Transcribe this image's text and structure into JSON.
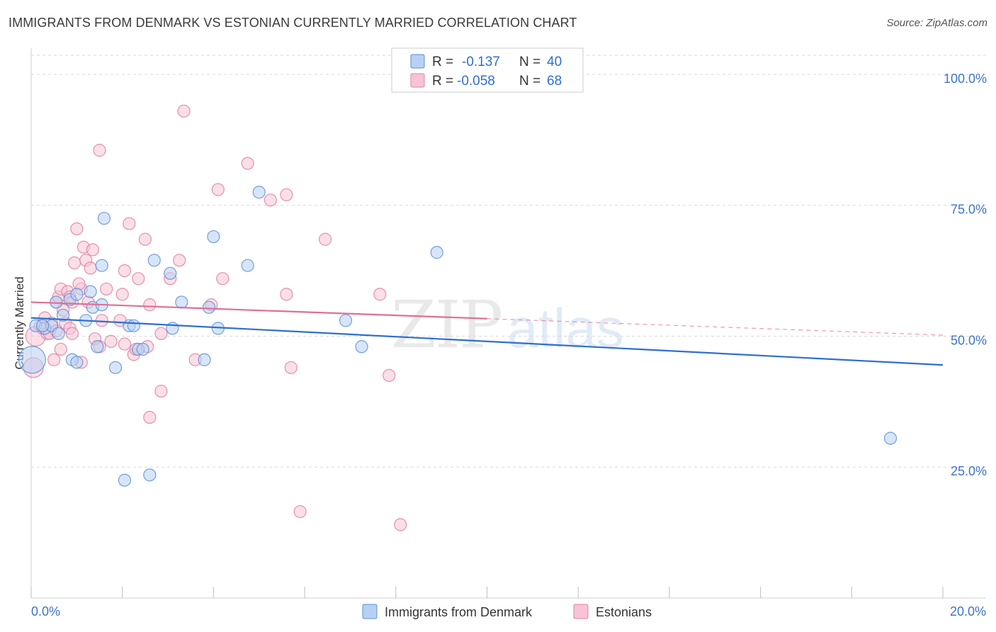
{
  "header": {
    "title": "IMMIGRANTS FROM DENMARK VS ESTONIAN CURRENTLY MARRIED CORRELATION CHART",
    "source": "Source: ZipAtlas.com"
  },
  "colors": {
    "blue_fill": "#b8d0f3",
    "blue_stroke": "#5b8fd6",
    "blue_line": "#2f6fcf",
    "pink_fill": "#f6c4d6",
    "pink_stroke": "#e07fa1",
    "pink_line": "#e06f96",
    "axis_label": "#3e74c9",
    "grid": "#d9d9d9"
  },
  "chart_data": {
    "type": "scatter",
    "title": "IMMIGRANTS FROM DENMARK VS ESTONIAN CURRENTLY MARRIED CORRELATION CHART",
    "xlabel": "",
    "ylabel": "Currently Married",
    "xlim": [
      0,
      20
    ],
    "ylim": [
      0,
      105
    ],
    "x_tick_labels": [
      "0.0%",
      "20.0%"
    ],
    "y_ticks": [
      25,
      50,
      75,
      100
    ],
    "y_tick_labels": [
      "25.0%",
      "50.0%",
      "75.0%",
      "100.0%"
    ],
    "watermark": {
      "zip": "ZIP",
      "atlas": "atlas"
    },
    "stats_legend": [
      {
        "r_label": "R =",
        "r": "-0.137",
        "n_label": "N =",
        "n": "40"
      },
      {
        "r_label": "R =",
        "r": "-0.058",
        "n_label": "N =",
        "n": "68"
      }
    ],
    "series": [
      {
        "name": "Immigrants from Denmark",
        "color": "#5b8fd6",
        "r": -0.137,
        "n": 40,
        "trend": {
          "x0": 0,
          "y0": 53.5,
          "x1": 20,
          "y1": 44.5,
          "solid_to": 20
        },
        "points": [
          {
            "x": 0.02,
            "y": 45.5,
            "s": "xl"
          },
          {
            "x": 0.1,
            "y": 52,
            "s": "m"
          },
          {
            "x": 0.3,
            "y": 51.5,
            "s": "m"
          },
          {
            "x": 0.45,
            "y": 52,
            "s": "m"
          },
          {
            "x": 0.6,
            "y": 50.5,
            "s": "m"
          },
          {
            "x": 0.55,
            "y": 56.5,
            "s": "m"
          },
          {
            "x": 0.7,
            "y": 54,
            "s": "m"
          },
          {
            "x": 0.85,
            "y": 57,
            "s": "m"
          },
          {
            "x": 1.0,
            "y": 58,
            "s": "m"
          },
          {
            "x": 1.2,
            "y": 53,
            "s": "m"
          },
          {
            "x": 1.35,
            "y": 55.5,
            "s": "m"
          },
          {
            "x": 1.55,
            "y": 56,
            "s": "m"
          },
          {
            "x": 1.3,
            "y": 58.5,
            "s": "m"
          },
          {
            "x": 1.55,
            "y": 63.5,
            "s": "m"
          },
          {
            "x": 1.6,
            "y": 72.5,
            "s": "m"
          },
          {
            "x": 0.9,
            "y": 45.5,
            "s": "m"
          },
          {
            "x": 1.0,
            "y": 45,
            "s": "m"
          },
          {
            "x": 1.45,
            "y": 48,
            "s": "m"
          },
          {
            "x": 1.85,
            "y": 44,
            "s": "m"
          },
          {
            "x": 2.15,
            "y": 52,
            "s": "m"
          },
          {
            "x": 2.25,
            "y": 52,
            "s": "m"
          },
          {
            "x": 2.35,
            "y": 47.5,
            "s": "m"
          },
          {
            "x": 2.45,
            "y": 47.5,
            "s": "m"
          },
          {
            "x": 2.7,
            "y": 64.5,
            "s": "m"
          },
          {
            "x": 3.05,
            "y": 62,
            "s": "m"
          },
          {
            "x": 3.1,
            "y": 51.5,
            "s": "m"
          },
          {
            "x": 3.3,
            "y": 56.5,
            "s": "m"
          },
          {
            "x": 3.8,
            "y": 45.5,
            "s": "m"
          },
          {
            "x": 3.9,
            "y": 55.5,
            "s": "m"
          },
          {
            "x": 4.0,
            "y": 69,
            "s": "m"
          },
          {
            "x": 4.1,
            "y": 51.5,
            "s": "m"
          },
          {
            "x": 4.75,
            "y": 63.5,
            "s": "m"
          },
          {
            "x": 5.0,
            "y": 77.5,
            "s": "m"
          },
          {
            "x": 6.9,
            "y": 53,
            "s": "m"
          },
          {
            "x": 7.25,
            "y": 48,
            "s": "m"
          },
          {
            "x": 8.9,
            "y": 66,
            "s": "m"
          },
          {
            "x": 2.05,
            "y": 22.5,
            "s": "m"
          },
          {
            "x": 2.6,
            "y": 23.5,
            "s": "m"
          },
          {
            "x": 18.85,
            "y": 30.5,
            "s": "m"
          },
          {
            "x": 0.25,
            "y": 52,
            "s": "m"
          }
        ]
      },
      {
        "name": "Estonians",
        "color": "#e07fa1",
        "r": -0.058,
        "n": 68,
        "trend": {
          "x0": 0,
          "y0": 56.5,
          "x1": 20,
          "y1": 50.2,
          "solid_to": 10
        },
        "points": [
          {
            "x": 0.05,
            "y": 44,
            "s": "l"
          },
          {
            "x": 0.1,
            "y": 50,
            "s": "l"
          },
          {
            "x": 0.2,
            "y": 52,
            "s": "m"
          },
          {
            "x": 0.25,
            "y": 51.5,
            "s": "m"
          },
          {
            "x": 0.3,
            "y": 53.5,
            "s": "m"
          },
          {
            "x": 0.35,
            "y": 50.5,
            "s": "m"
          },
          {
            "x": 0.45,
            "y": 52.5,
            "s": "m"
          },
          {
            "x": 0.5,
            "y": 45.5,
            "s": "m"
          },
          {
            "x": 0.55,
            "y": 56.5,
            "s": "m"
          },
          {
            "x": 0.6,
            "y": 57.5,
            "s": "m"
          },
          {
            "x": 0.65,
            "y": 59,
            "s": "m"
          },
          {
            "x": 0.7,
            "y": 55,
            "s": "m"
          },
          {
            "x": 0.75,
            "y": 52.5,
            "s": "m"
          },
          {
            "x": 0.8,
            "y": 58.5,
            "s": "m"
          },
          {
            "x": 0.85,
            "y": 57.5,
            "s": "m"
          },
          {
            "x": 0.9,
            "y": 56.5,
            "s": "m"
          },
          {
            "x": 0.95,
            "y": 64,
            "s": "m"
          },
          {
            "x": 0.85,
            "y": 51.5,
            "s": "m"
          },
          {
            "x": 0.9,
            "y": 50.5,
            "s": "m"
          },
          {
            "x": 1.0,
            "y": 70.5,
            "s": "m"
          },
          {
            "x": 1.1,
            "y": 59,
            "s": "m"
          },
          {
            "x": 1.1,
            "y": 45,
            "s": "m"
          },
          {
            "x": 1.15,
            "y": 67,
            "s": "m"
          },
          {
            "x": 1.2,
            "y": 64.5,
            "s": "m"
          },
          {
            "x": 1.25,
            "y": 56.5,
            "s": "m"
          },
          {
            "x": 1.35,
            "y": 66.5,
            "s": "m"
          },
          {
            "x": 1.4,
            "y": 49.5,
            "s": "m"
          },
          {
            "x": 1.5,
            "y": 48,
            "s": "m"
          },
          {
            "x": 1.55,
            "y": 53,
            "s": "m"
          },
          {
            "x": 1.65,
            "y": 59,
            "s": "m"
          },
          {
            "x": 1.5,
            "y": 85.5,
            "s": "m"
          },
          {
            "x": 1.75,
            "y": 49,
            "s": "m"
          },
          {
            "x": 1.95,
            "y": 53,
            "s": "m"
          },
          {
            "x": 2.0,
            "y": 58,
            "s": "m"
          },
          {
            "x": 2.05,
            "y": 48.5,
            "s": "m"
          },
          {
            "x": 2.05,
            "y": 62.5,
            "s": "m"
          },
          {
            "x": 2.15,
            "y": 71.5,
            "s": "m"
          },
          {
            "x": 2.25,
            "y": 46.5,
            "s": "m"
          },
          {
            "x": 2.35,
            "y": 61,
            "s": "m"
          },
          {
            "x": 2.5,
            "y": 68.5,
            "s": "m"
          },
          {
            "x": 2.55,
            "y": 48,
            "s": "m"
          },
          {
            "x": 2.6,
            "y": 56,
            "s": "m"
          },
          {
            "x": 2.6,
            "y": 34.5,
            "s": "m"
          },
          {
            "x": 2.85,
            "y": 39.5,
            "s": "m"
          },
          {
            "x": 2.85,
            "y": 50.5,
            "s": "m"
          },
          {
            "x": 3.05,
            "y": 61,
            "s": "m"
          },
          {
            "x": 3.25,
            "y": 64.5,
            "s": "m"
          },
          {
            "x": 3.35,
            "y": 93,
            "s": "m"
          },
          {
            "x": 3.6,
            "y": 45.5,
            "s": "m"
          },
          {
            "x": 3.95,
            "y": 56,
            "s": "m"
          },
          {
            "x": 4.1,
            "y": 78,
            "s": "m"
          },
          {
            "x": 4.2,
            "y": 61,
            "s": "m"
          },
          {
            "x": 4.75,
            "y": 83,
            "s": "m"
          },
          {
            "x": 5.25,
            "y": 76,
            "s": "m"
          },
          {
            "x": 5.6,
            "y": 77,
            "s": "m"
          },
          {
            "x": 5.6,
            "y": 58,
            "s": "m"
          },
          {
            "x": 5.7,
            "y": 44,
            "s": "m"
          },
          {
            "x": 5.9,
            "y": 16.5,
            "s": "m"
          },
          {
            "x": 6.45,
            "y": 68.5,
            "s": "m"
          },
          {
            "x": 7.65,
            "y": 58,
            "s": "m"
          },
          {
            "x": 7.85,
            "y": 42.5,
            "s": "m"
          },
          {
            "x": 8.1,
            "y": 14,
            "s": "m"
          },
          {
            "x": 0.4,
            "y": 50.5,
            "s": "m"
          },
          {
            "x": 0.65,
            "y": 47.5,
            "s": "m"
          },
          {
            "x": 1.05,
            "y": 60,
            "s": "m"
          },
          {
            "x": 2.3,
            "y": 47.5,
            "s": "m"
          },
          {
            "x": 1.3,
            "y": 63,
            "s": "m"
          },
          {
            "x": 0.55,
            "y": 51,
            "s": "m"
          }
        ]
      }
    ]
  }
}
